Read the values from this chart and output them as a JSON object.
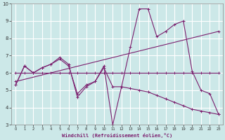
{
  "xlabel": "Windchill (Refroidissement éolien,°C)",
  "xlim": [
    -0.5,
    23.5
  ],
  "ylim": [
    3,
    10
  ],
  "yticks": [
    3,
    4,
    5,
    6,
    7,
    8,
    9,
    10
  ],
  "xticks": [
    0,
    1,
    2,
    3,
    4,
    5,
    6,
    7,
    8,
    9,
    10,
    11,
    12,
    13,
    14,
    15,
    16,
    17,
    18,
    19,
    20,
    21,
    22,
    23
  ],
  "background_color": "#cce8e8",
  "grid_color": "#ffffff",
  "line_color": "#7b1f6e",
  "lines": [
    {
      "x": [
        0,
        1,
        2,
        3,
        4,
        5,
        6,
        7,
        8,
        9,
        10,
        11,
        12,
        13,
        14,
        15,
        16,
        17,
        18,
        19,
        20,
        21,
        22,
        23
      ],
      "y": [
        5.3,
        6.4,
        6.0,
        6.3,
        6.5,
        6.9,
        6.5,
        4.6,
        5.2,
        5.5,
        6.4,
        3.0,
        5.2,
        7.5,
        9.7,
        9.7,
        8.1,
        8.4,
        8.8,
        9.0,
        6.1,
        5.0,
        4.8,
        3.6
      ]
    },
    {
      "x": [
        0,
        1,
        2,
        3,
        4,
        5,
        6,
        7,
        8,
        9,
        10,
        11,
        12,
        13,
        14,
        15,
        16,
        17,
        18,
        19,
        20,
        21,
        22,
        23
      ],
      "y": [
        6.0,
        6.0,
        6.0,
        6.0,
        6.0,
        6.0,
        6.0,
        6.0,
        6.0,
        6.0,
        6.0,
        6.0,
        6.0,
        6.0,
        6.0,
        6.0,
        6.0,
        6.0,
        6.0,
        6.0,
        6.0,
        6.0,
        6.0,
        6.0
      ]
    },
    {
      "x": [
        0,
        1,
        2,
        3,
        4,
        5,
        6,
        7,
        8,
        9,
        10,
        11,
        12,
        13,
        14,
        15,
        16,
        17,
        18,
        19,
        20,
        21,
        22,
        23
      ],
      "y": [
        5.3,
        6.4,
        6.0,
        6.3,
        6.5,
        6.8,
        6.4,
        4.8,
        5.3,
        5.5,
        6.3,
        5.2,
        5.2,
        5.1,
        5.0,
        4.9,
        4.7,
        4.5,
        4.3,
        4.1,
        3.9,
        3.8,
        3.7,
        3.6
      ]
    },
    {
      "x": [
        0,
        23
      ],
      "y": [
        5.5,
        8.4
      ]
    }
  ]
}
